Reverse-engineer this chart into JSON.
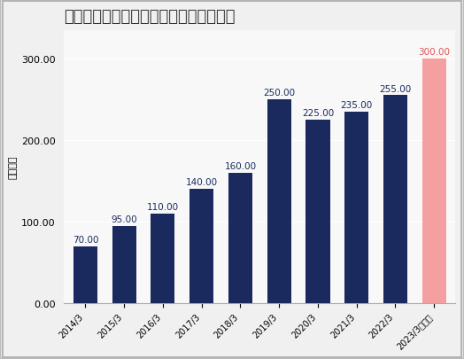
{
  "title": "東京海上ホールディングスの配当金推移",
  "ylabel": "配当金額",
  "categories": [
    "2014/3",
    "2015/3",
    "2016/3",
    "2017/3",
    "2018/3",
    "2019/3",
    "2020/3",
    "2021/3",
    "2022/3",
    "2023/3（予）"
  ],
  "values": [
    70.0,
    95.0,
    110.0,
    140.0,
    160.0,
    250.0,
    225.0,
    235.0,
    255.0,
    300.0
  ],
  "bar_colors": [
    "#1a2a5e",
    "#1a2a5e",
    "#1a2a5e",
    "#1a2a5e",
    "#1a2a5e",
    "#1a2a5e",
    "#1a2a5e",
    "#1a2a5e",
    "#1a2a5e",
    "#f4a0a0"
  ],
  "label_colors": [
    "#1a2a5e",
    "#1a2a5e",
    "#1a2a5e",
    "#1a2a5e",
    "#1a2a5e",
    "#1a2a5e",
    "#1a2a5e",
    "#1a2a5e",
    "#1a2a5e",
    "#e05555"
  ],
  "ylim": [
    0,
    335
  ],
  "yticks": [
    0.0,
    100.0,
    200.0,
    300.0
  ],
  "background_color": "#f0f0f0",
  "plot_bg_color": "#f8f8f8",
  "border_color": "#bbbbbb",
  "title_fontsize": 13,
  "label_fontsize": 7.5,
  "ylabel_fontsize": 8,
  "tick_fontsize": 8,
  "xtick_fontsize": 7
}
